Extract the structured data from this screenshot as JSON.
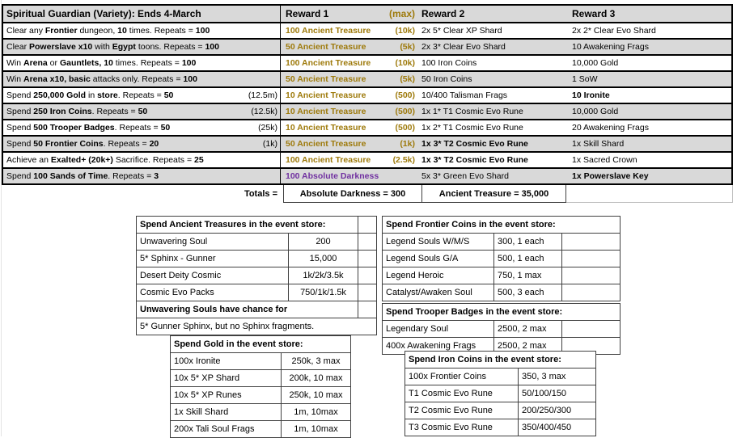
{
  "colors": {
    "gold_text": "#9E7A0B",
    "purple_text": "#7030A0",
    "header_bg": "#D9D9D9",
    "stripe_bg": "#D9D9D9",
    "table_border": "#000000",
    "subtable_border": "#404040"
  },
  "main_table": {
    "title": "Spiritual Guardian (Variety):  Ends 4-March",
    "headers": {
      "reward1": "Reward 1",
      "max": "(max)",
      "reward2": "Reward 2",
      "reward3": "Reward 3"
    },
    "rows": [
      {
        "task": [
          [
            "Clear any ",
            0
          ],
          [
            "Frontier",
            1
          ],
          [
            " dungeon, ",
            0
          ],
          [
            "10",
            1
          ],
          [
            " times. Repeats = ",
            0
          ],
          [
            "100",
            1
          ]
        ],
        "paren": "",
        "r1": "100 Ancient Treasure",
        "r1max": "(10k)",
        "r2": "2x 5* Clear XP Shard",
        "r3": "2x 2* Clear Evo Shard"
      },
      {
        "task": [
          [
            "Clear ",
            0
          ],
          [
            "Powerslave x10",
            1
          ],
          [
            " with ",
            0
          ],
          [
            "Egypt",
            1
          ],
          [
            " toons. Repeats = ",
            0
          ],
          [
            "100",
            1
          ]
        ],
        "paren": "",
        "r1": "50 Ancient Treasure",
        "r1max": "(5k)",
        "r2": "2x 3* Clear Evo Shard",
        "r3": "10 Awakening Frags"
      },
      {
        "task": [
          [
            "Win ",
            0
          ],
          [
            "Arena",
            1
          ],
          [
            " or ",
            0
          ],
          [
            "Gauntlets, 10",
            1
          ],
          [
            " times. Repeats = ",
            0
          ],
          [
            "100",
            1
          ]
        ],
        "paren": "",
        "r1": "100 Ancient Treasure",
        "r1max": "(10k)",
        "r2": "100 Iron Coins",
        "r3": "10,000 Gold"
      },
      {
        "task": [
          [
            "Win ",
            0
          ],
          [
            "Arena x10, basic",
            1
          ],
          [
            " attacks only. Repeats = ",
            0
          ],
          [
            "100",
            1
          ]
        ],
        "paren": "",
        "r1": "50 Ancient Treasure",
        "r1max": "(5k)",
        "r2": "50 Iron Coins",
        "r3": "1 SoW"
      },
      {
        "task": [
          [
            "Spend ",
            0
          ],
          [
            "250,000 Gold",
            1
          ],
          [
            " in ",
            0
          ],
          [
            "store",
            1
          ],
          [
            ". Repeats = ",
            0
          ],
          [
            "50",
            1
          ]
        ],
        "paren": "(12.5m)",
        "r1": "10 Ancient Treasure",
        "r1max": "(500)",
        "r2": "10/400 Talisman Frags",
        "r3": "10 Ironite"
      },
      {
        "task": [
          [
            "Spend ",
            0
          ],
          [
            "250 Iron Coins",
            1
          ],
          [
            ". Repeats = ",
            0
          ],
          [
            "50",
            1
          ]
        ],
        "paren": "(12.5k)",
        "r1": "10 Ancient Treasure",
        "r1max": "(500)",
        "r2": "1x 1* T1 Cosmic Evo Rune",
        "r3": "10,000 Gold"
      },
      {
        "task": [
          [
            "Spend ",
            0
          ],
          [
            "500 Trooper Badges",
            1
          ],
          [
            ". Repeats = ",
            0
          ],
          [
            "50",
            1
          ]
        ],
        "paren": "(25k)",
        "r1": "10 Ancient Treasure",
        "r1max": "(500)",
        "r2": "1x 2* T1 Cosmic Evo Rune",
        "r3": "20 Awakening Frags"
      },
      {
        "task": [
          [
            "Spend ",
            0
          ],
          [
            "50 Frontier Coins",
            1
          ],
          [
            ". Repeats = ",
            0
          ],
          [
            "20",
            1
          ]
        ],
        "paren": "(1k)",
        "r1": "50 Ancient Treasure",
        "r1max": "(1k)",
        "r2": "1x 3* T2 Cosmic Evo Rune",
        "r3": "1x Skill Shard"
      },
      {
        "task": [
          [
            "Achieve an ",
            0
          ],
          [
            "Exalted+ (20k+)",
            1
          ],
          [
            " Sacrifice. Repeats = ",
            0
          ],
          [
            "25",
            1
          ]
        ],
        "paren": "",
        "r1": "100 Ancient Treasure",
        "r1max": "(2.5k)",
        "r2": "1x 3* T2 Cosmic Evo Rune",
        "r3": "1x Sacred Crown"
      },
      {
        "task": [
          [
            "Spend ",
            0
          ],
          [
            "100 Sands of Time",
            1
          ],
          [
            ". Repeats = ",
            0
          ],
          [
            "3",
            1
          ]
        ],
        "paren": "",
        "r1": "100 Absolute Darkness",
        "r1max": "",
        "r2": "5x 3* Green Evo Shard",
        "r3": "1x Powerslave Key"
      }
    ],
    "totals": {
      "label": "Totals =",
      "absolute_darkness": "Absolute Darkness = 300",
      "ancient_treasure": "Ancient Treasure = 35,000"
    }
  },
  "stores": {
    "ancient": {
      "title": "Spend Ancient Treasures in the event store:",
      "rows": [
        [
          "Unwavering Soul",
          "200"
        ],
        [
          "5* Sphinx - Gunner",
          "15,000"
        ],
        [
          "Desert Deity Cosmic",
          "1k/2k/3.5k"
        ],
        [
          "Cosmic Evo Packs",
          "750/1k/1.5k"
        ]
      ],
      "note_bold": "Unwavering Souls have chance for",
      "note": "5* Gunner Sphinx, but no Sphinx fragments."
    },
    "frontier": {
      "title": "Spend Frontier Coins in the event store:",
      "rows": [
        [
          "Legend Souls W/M/S",
          "300, 1 each"
        ],
        [
          "Legend Souls G/A",
          "500, 1 each"
        ],
        [
          "Legend Heroic",
          "750, 1 max"
        ],
        [
          "Catalyst/Awaken Soul",
          "500, 3 each"
        ]
      ]
    },
    "trooper": {
      "title": "Spend Trooper Badges in the event store:",
      "rows": [
        [
          "Legendary Soul",
          "2500, 2 max"
        ],
        [
          "400x Awakening Frags",
          "2500, 2 max"
        ]
      ]
    },
    "gold": {
      "title": "Spend Gold in the event store:",
      "rows": [
        [
          "100x Ironite",
          "250k, 3 max"
        ],
        [
          "10x 5* XP Shard",
          "200k, 10 max"
        ],
        [
          "10x 5* XP Runes",
          "250k, 10 max"
        ],
        [
          "1x Skill Shard",
          "1m, 10max"
        ],
        [
          "200x Tali Soul Frags",
          "1m, 10max"
        ]
      ]
    },
    "iron": {
      "title": "Spend Iron Coins in the event store:",
      "rows": [
        [
          "100x Frontier Coins",
          "350, 3 max"
        ],
        [
          "T1 Cosmic Evo Rune",
          "50/100/150"
        ],
        [
          "T2 Cosmic Evo Rune",
          "200/250/300"
        ],
        [
          "T3 Cosmic Evo Rune",
          "350/400/450"
        ]
      ]
    }
  }
}
